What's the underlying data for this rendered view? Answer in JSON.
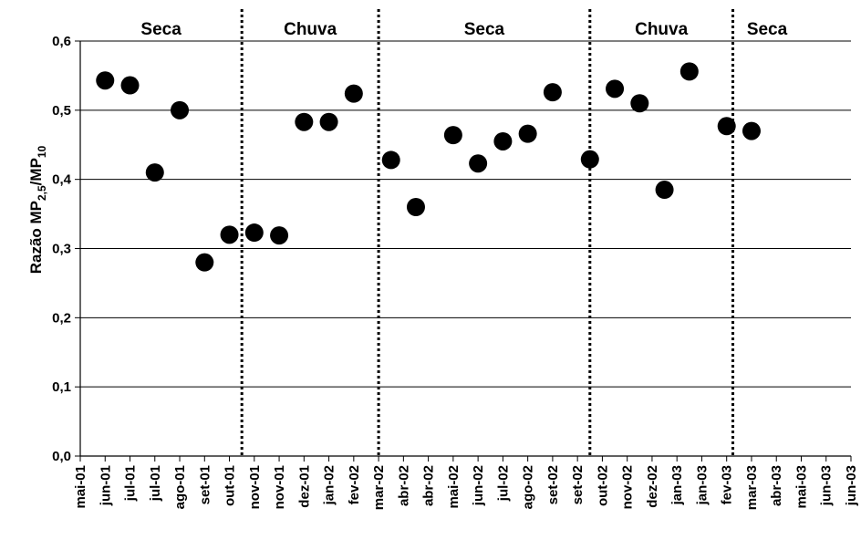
{
  "chart_data": {
    "type": "scatter",
    "title": "",
    "xlabel": "",
    "ylabel": {
      "prefix": "Razão MP",
      "sub1": "2,5",
      "mid": "/MP",
      "sub2": "10"
    },
    "ylim": [
      0,
      0.6
    ],
    "yticks": [
      "0,0",
      "0,1",
      "0,2",
      "0,3",
      "0,4",
      "0,5",
      "0,6"
    ],
    "grid": "horizontal",
    "legend": "none",
    "marker_color": "#000000",
    "categories": [
      "mai-01",
      "jun-01",
      "jul-01",
      "jul-01",
      "ago-01",
      "set-01",
      "out-01",
      "nov-01",
      "nov-01",
      "dez-01",
      "jan-02",
      "fev-02",
      "mar-02",
      "abr-02",
      "abr-02",
      "mai-02",
      "jun-02",
      "jul-02",
      "ago-02",
      "set-02",
      "set-02",
      "out-02",
      "nov-02",
      "dez-02",
      "jan-03",
      "jan-03",
      "fev-03",
      "mar-03",
      "abr-03",
      "mai-03",
      "jun-03",
      "jun-03"
    ],
    "points": [
      {
        "x": "jun-01",
        "y": 0.543
      },
      {
        "x": "jul-01",
        "y": 0.536
      },
      {
        "x": "jul-01",
        "y": 0.41
      },
      {
        "x": "ago-01",
        "y": 0.5
      },
      {
        "x": "set-01",
        "y": 0.28
      },
      {
        "x": "out-01",
        "y": 0.32
      },
      {
        "x": "nov-01",
        "y": 0.323
      },
      {
        "x": "dez-01",
        "y": 0.319
      },
      {
        "x": "jan-02",
        "y": 0.483
      },
      {
        "x": "fev-02",
        "y": 0.483
      },
      {
        "x": "mar-02",
        "y": 0.524
      },
      {
        "x": "abr-02",
        "y": 0.428
      },
      {
        "x": "mai-02",
        "y": 0.36
      },
      {
        "x": "jun-02",
        "y": 0.464
      },
      {
        "x": "jul-02",
        "y": 0.423
      },
      {
        "x": "ago-02",
        "y": 0.455
      },
      {
        "x": "set-02",
        "y": 0.466
      },
      {
        "x": "set-02",
        "y": 0.526
      },
      {
        "x": "nov-02",
        "y": 0.429
      },
      {
        "x": "dez-02",
        "y": 0.531
      },
      {
        "x": "jan-03",
        "y": 0.51
      },
      {
        "x": "jan-03",
        "y": 0.385
      },
      {
        "x": "fev-03",
        "y": 0.556
      },
      {
        "x": "mar-03",
        "y": 0.477
      },
      {
        "x": "abr-03",
        "y": 0.47
      }
    ],
    "point_slots": [
      1,
      2,
      3,
      4,
      5,
      6,
      7,
      8,
      9,
      10,
      11,
      12.5,
      13.5,
      15,
      16,
      17,
      18,
      19,
      20.5,
      21.5,
      22.5,
      23.5,
      24.5,
      26,
      27
    ],
    "seasons": [
      {
        "label": "Seca",
        "from": 0,
        "to": 6.5
      },
      {
        "label": "Chuva",
        "from": 6.5,
        "to": 12
      },
      {
        "label": "Seca",
        "from": 12,
        "to": 20.5
      },
      {
        "label": "Chuva",
        "from": 20.5,
        "to": 26.25
      },
      {
        "label": "Seca",
        "from": 26.25,
        "to": 29
      }
    ],
    "dividers": [
      6.5,
      12,
      20.5,
      26.25
    ]
  }
}
